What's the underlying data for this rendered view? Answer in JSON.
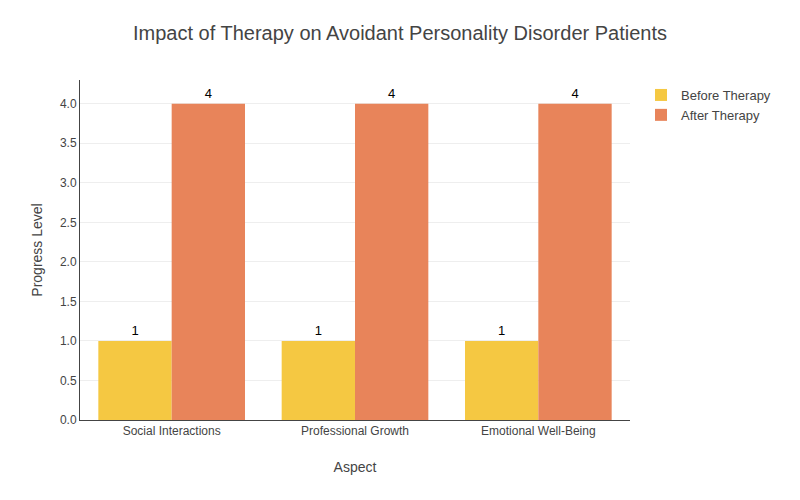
{
  "chart_data": {
    "type": "bar",
    "title": "Impact of Therapy on Avoidant Personality Disorder Patients",
    "xlabel": "Aspect",
    "ylabel": "Progress Level",
    "categories": [
      "Social Interactions",
      "Professional Growth",
      "Emotional Well-Being"
    ],
    "series": [
      {
        "name": "Before Therapy",
        "color": "#F5C842",
        "values": [
          1,
          1,
          1
        ]
      },
      {
        "name": "After Therapy",
        "color": "#E8845A",
        "values": [
          4,
          4,
          4
        ]
      }
    ],
    "ylim": [
      0,
      4.3
    ],
    "yticks": [
      {
        "value": 0,
        "label": "0.0"
      },
      0.5,
      {
        "value": 1,
        "label": "1.0"
      },
      1.5,
      {
        "value": 2,
        "label": "2.0"
      },
      2.5,
      {
        "value": 3,
        "label": "3.0"
      },
      3.5,
      {
        "value": 4,
        "label": "4.0"
      }
    ],
    "grid": true,
    "legend": "upper right",
    "data_labels": true
  }
}
